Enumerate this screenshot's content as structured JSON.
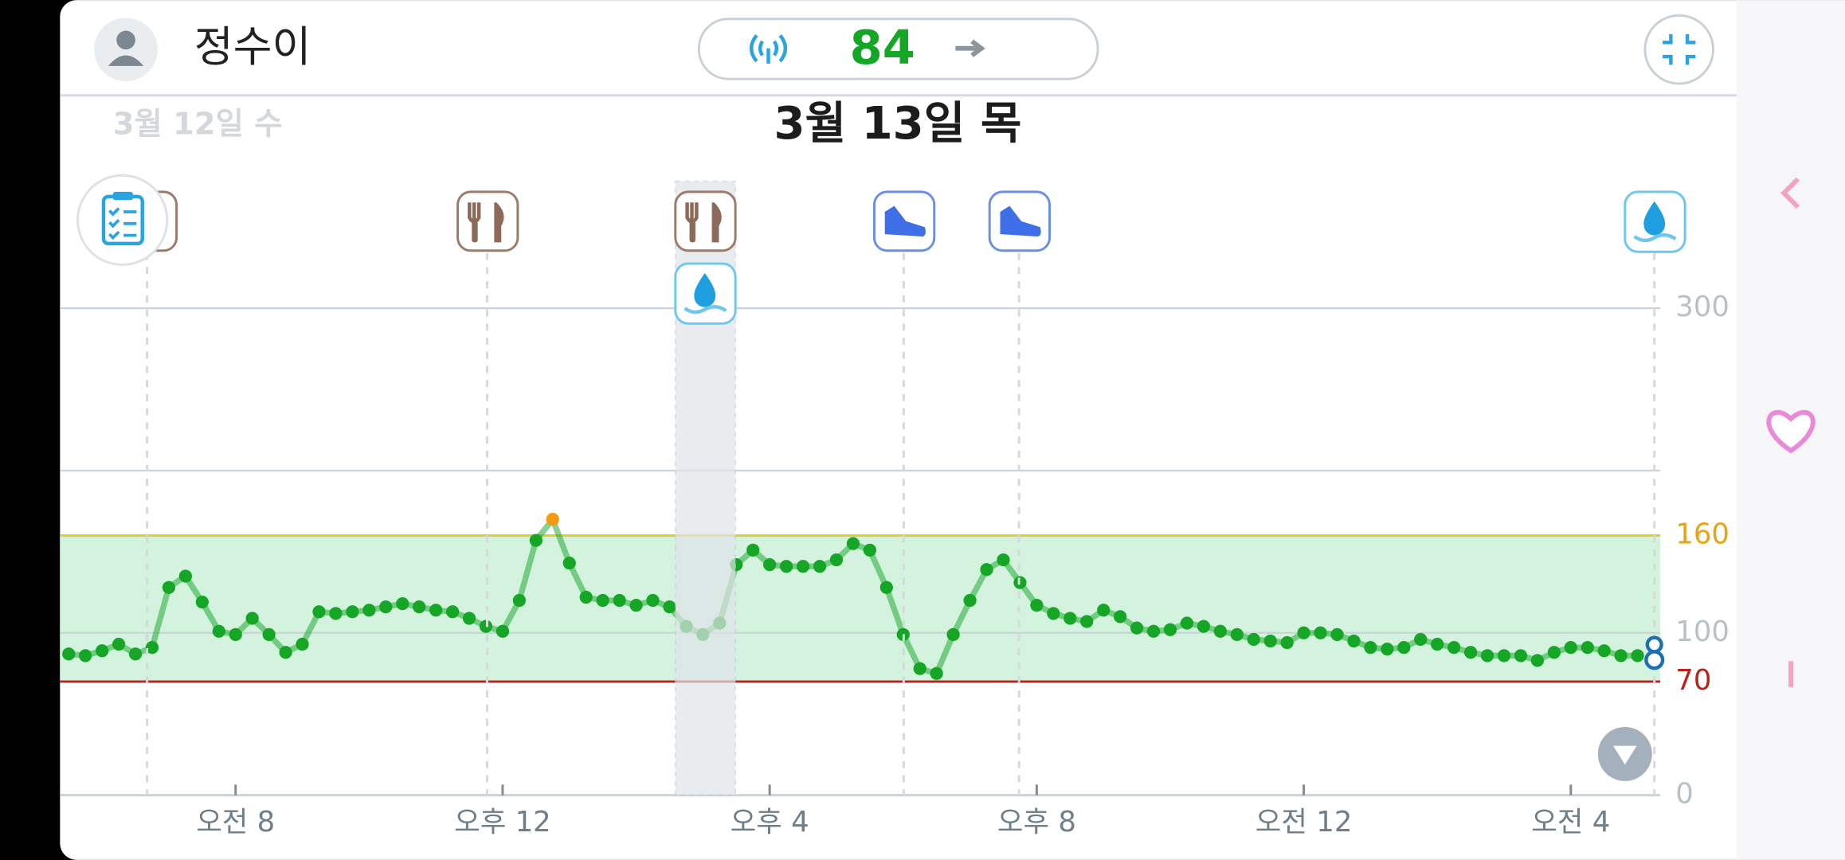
{
  "header": {
    "user_name": "정수이",
    "current_value": 84,
    "prev_date": "3월 12일 수",
    "date": "3월 13일 목"
  },
  "chart_data": {
    "type": "scatter",
    "x": [
      5.5,
      5.75,
      6,
      6.25,
      6.5,
      6.75,
      7,
      7.25,
      7.5,
      7.75,
      8,
      8.25,
      8.5,
      8.75,
      9,
      9.25,
      9.5,
      9.75,
      10,
      10.25,
      10.5,
      10.75,
      11,
      11.25,
      11.5,
      11.75,
      12,
      12.25,
      12.5,
      12.75,
      13,
      13.25,
      13.5,
      13.75,
      14,
      14.25,
      14.5,
      14.75,
      15,
      15.25,
      15.5,
      15.75,
      16,
      16.25,
      16.5,
      16.75,
      17,
      17.25,
      17.5,
      17.75,
      18,
      18.25,
      18.5,
      18.75,
      19,
      19.25,
      19.5,
      19.75,
      20,
      20.25,
      20.5,
      20.75,
      21,
      21.25,
      21.5,
      21.75,
      22,
      22.25,
      22.5,
      22.75,
      23,
      23.25,
      23.5,
      23.75,
      24,
      24.25,
      24.5,
      24.75,
      25,
      25.25,
      25.5,
      25.75,
      26,
      26.25,
      26.5,
      26.75,
      27,
      27.25,
      27.5,
      27.75,
      28,
      28.25,
      28.5,
      28.75,
      29
    ],
    "values": [
      87,
      86,
      89,
      93,
      87,
      91,
      128,
      135,
      119,
      101,
      99,
      109,
      99,
      88,
      93,
      113,
      112,
      113,
      114,
      116,
      118,
      116,
      114,
      113,
      109,
      104,
      101,
      120,
      157,
      170,
      143,
      122,
      120,
      120,
      117,
      120,
      116,
      104,
      99,
      106,
      142,
      151,
      142,
      141,
      141,
      141,
      145,
      155,
      151,
      128,
      99,
      78,
      75,
      99,
      120,
      139,
      145,
      131,
      117,
      112,
      109,
      107,
      114,
      110,
      103,
      101,
      102,
      106,
      104,
      101,
      99,
      96,
      95,
      94,
      100,
      100,
      99,
      95,
      91,
      90,
      91,
      96,
      93,
      91,
      88,
      86,
      86,
      86,
      83,
      88,
      91,
      91,
      89,
      86,
      86
    ],
    "color": "#15a626",
    "high_color": "#f39a12",
    "target_range": {
      "low": 70,
      "high": 160
    },
    "xlim": [
      5.37,
      29.34
    ],
    "xticks": [
      {
        "value": 8,
        "label": "오전 8"
      },
      {
        "value": 12,
        "label": "오후 12"
      },
      {
        "value": 16,
        "label": "오후 4"
      },
      {
        "value": 20,
        "label": "오후 8"
      },
      {
        "value": 24,
        "label": "오전 12"
      },
      {
        "value": 28,
        "label": "오전 4"
      }
    ],
    "ylim": [
      0,
      300
    ],
    "yticks": [
      0,
      100,
      300
    ],
    "gridlines": [
      100,
      200,
      300
    ]
  }
}
